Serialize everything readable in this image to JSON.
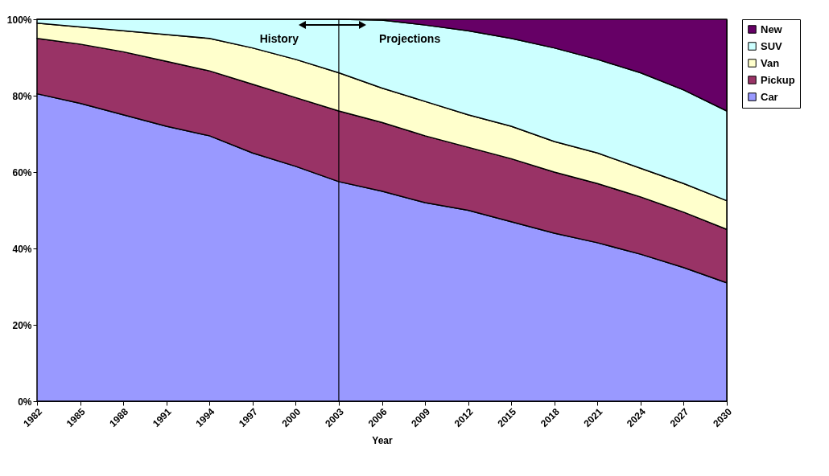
{
  "chart_data": {
    "type": "area",
    "stacked": true,
    "xlabel": "Year",
    "x": [
      1982,
      1985,
      1988,
      1991,
      1994,
      1997,
      2000,
      2003,
      2006,
      2009,
      2012,
      2015,
      2018,
      2021,
      2024,
      2027,
      2030
    ],
    "series": [
      {
        "name": "Car",
        "color": "#9999ff",
        "values": [
          80.5,
          78,
          75,
          72,
          69.5,
          65,
          61.5,
          57.5,
          55,
          52,
          50,
          47,
          44,
          41.5,
          38.5,
          35,
          31
        ]
      },
      {
        "name": "Pickup",
        "color": "#993366",
        "values": [
          14.5,
          15.5,
          16.5,
          17,
          17,
          18,
          18,
          18.5,
          18,
          17.5,
          16.5,
          16.5,
          16,
          15.5,
          15,
          14.5,
          14
        ]
      },
      {
        "name": "Van",
        "color": "#ffffcc",
        "values": [
          4,
          4.5,
          5.5,
          7,
          8.5,
          9.5,
          10,
          10,
          9,
          9,
          8.5,
          8.5,
          8,
          8,
          7.5,
          7.5,
          7.5
        ]
      },
      {
        "name": "SUV",
        "color": "#ccffff",
        "values": [
          1,
          2,
          3,
          4,
          5,
          7.5,
          10.5,
          14,
          17.8,
          20,
          22,
          23,
          24.5,
          24.5,
          25,
          24.5,
          23.5
        ]
      },
      {
        "name": "New",
        "color": "#660066",
        "values": [
          0,
          0,
          0,
          0,
          0,
          0,
          0,
          0,
          0.2,
          1.5,
          3,
          5,
          7.5,
          10.5,
          14,
          18.5,
          24
        ]
      }
    ],
    "xlim": [
      1982,
      2030
    ],
    "xticks": [
      1982,
      1985,
      1988,
      1991,
      1994,
      1997,
      2000,
      2003,
      2006,
      2009,
      2012,
      2015,
      2018,
      2021,
      2024,
      2027,
      2030
    ],
    "ylim": [
      0,
      100
    ],
    "yticks": [
      {
        "value": 0,
        "label": "0%"
      },
      {
        "value": 20,
        "label": "20%"
      },
      {
        "value": 40,
        "label": "40%"
      },
      {
        "value": 60,
        "label": "60%"
      },
      {
        "value": 80,
        "label": "80%"
      },
      {
        "value": 100,
        "label": "100%"
      }
    ],
    "ref_lines": [
      {
        "axis": "x",
        "value": 2003
      }
    ],
    "annotations": [
      "History",
      "Projections"
    ],
    "legend": "right",
    "grid": false
  }
}
